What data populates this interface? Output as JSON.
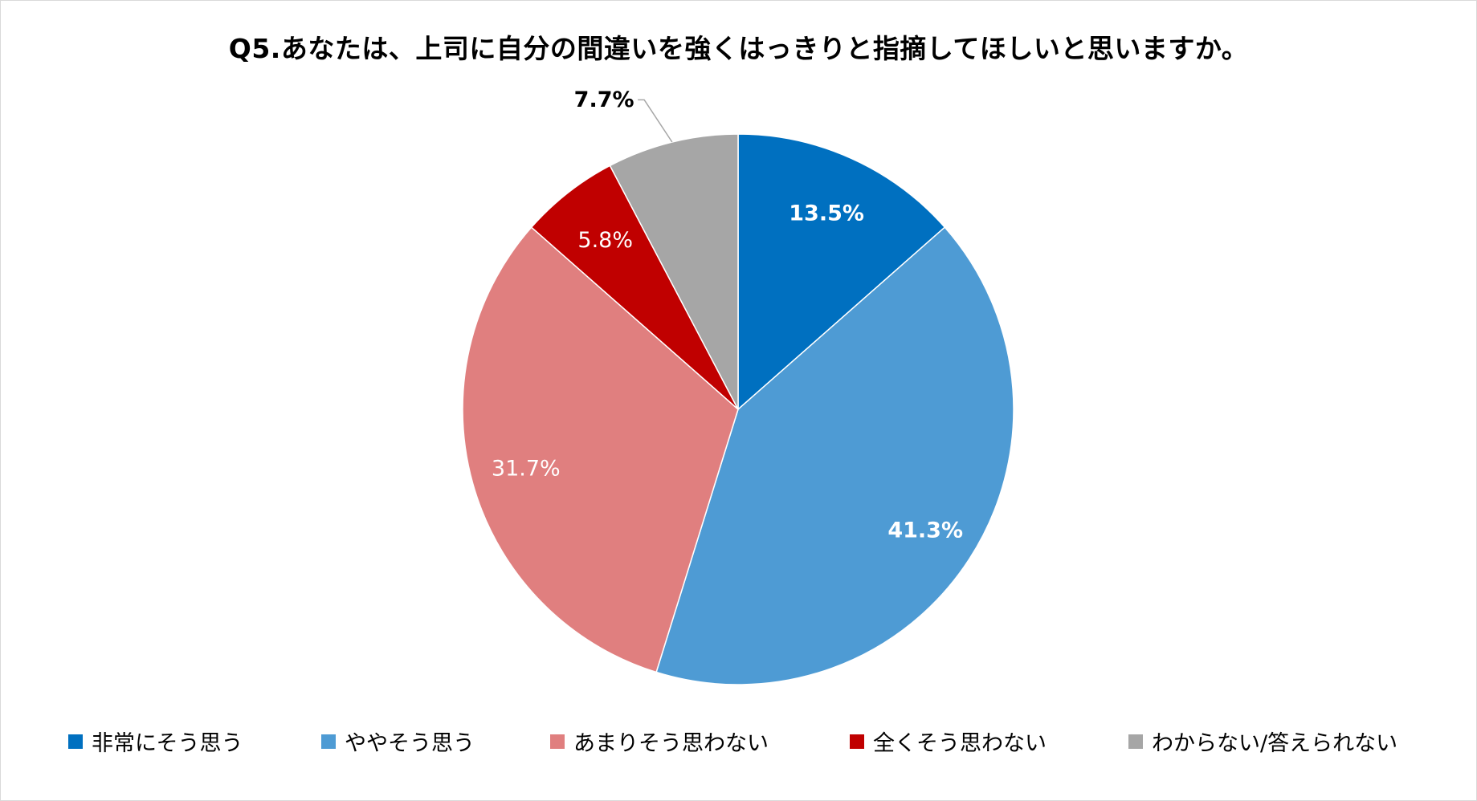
{
  "title": "Q5.あなたは、上司に自分の間違いを強くはっきりと指摘してほしいと思いますか。",
  "chart_data": {
    "type": "pie",
    "title": "Q5.あなたは、上司に自分の間違いを強くはっきりと指摘してほしいと思いますか。",
    "slices": [
      {
        "label": "非常にそう思う",
        "value": 13.5,
        "value_label": "13.5%",
        "color": "#0070c0",
        "label_color": "#ffffff",
        "label_bold": true
      },
      {
        "label": "ややそう思う",
        "value": 41.3,
        "value_label": "41.3%",
        "color": "#4e9bd4",
        "label_color": "#ffffff",
        "label_bold": true
      },
      {
        "label": "あまりそう思わない",
        "value": 31.7,
        "value_label": "31.7%",
        "color": "#e07f7f",
        "label_color": "#ffffff",
        "label_bold": false
      },
      {
        "label": "全くそう思わない",
        "value": 5.8,
        "value_label": "5.8%",
        "color": "#c00000",
        "label_color": "#ffffff",
        "label_bold": false
      },
      {
        "label": "わからない/答えられない",
        "value": 7.7,
        "value_label": "7.7%",
        "color": "#a6a6a6",
        "label_color": "#000000",
        "label_bold": true
      }
    ],
    "start_angle_deg": 0,
    "direction": "clockwise",
    "legend_position": "bottom"
  },
  "legend": {
    "items": [
      {
        "label": "非常にそう思う",
        "color": "#0070c0"
      },
      {
        "label": "ややそう思う",
        "color": "#4e9bd4"
      },
      {
        "label": "あまりそう思わない",
        "color": "#e07f7f"
      },
      {
        "label": "全くそう思わない",
        "color": "#c00000"
      },
      {
        "label": "わからない/答えられない",
        "color": "#a6a6a6"
      }
    ]
  }
}
